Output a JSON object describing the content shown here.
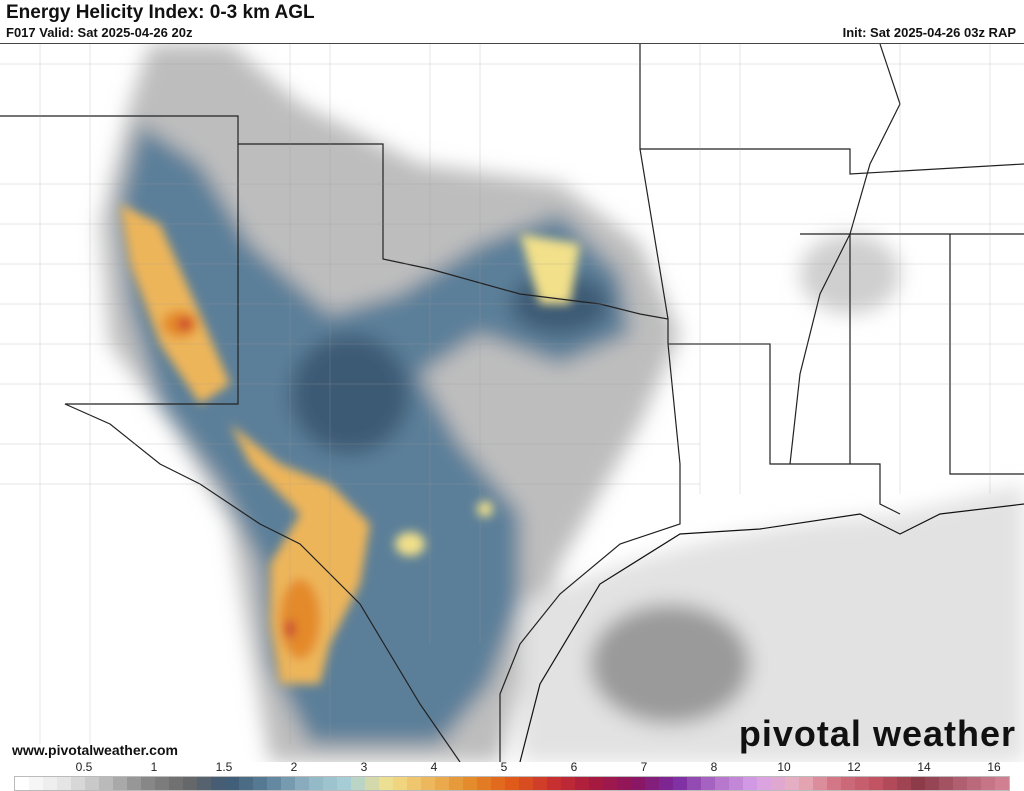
{
  "header": {
    "title": "Energy Helicity Index: 0-3 km AGL",
    "valid": "F017 Valid: Sat 2025-04-26 20z",
    "init": "Init: Sat 2025-04-26 03z RAP"
  },
  "footer": {
    "website": "www.pivotalweather.com",
    "logo": "pivotal weather"
  },
  "colorbar": {
    "labels": [
      "0.5",
      "1",
      "1.5",
      "2",
      "3",
      "4",
      "5",
      "6",
      "7",
      "8",
      "10",
      "12",
      "14",
      "16"
    ],
    "stops": [
      "#ffffff",
      "#e6e6e6",
      "#bdbdbd",
      "#8a8a8a",
      "#6a6a6a",
      "#3e5a75",
      "#5b7f99",
      "#8fb4c4",
      "#a9d0d8",
      "#f2e08a",
      "#edb55a",
      "#e48a2a",
      "#e05a1a",
      "#c83030",
      "#a81a40",
      "#8a1560",
      "#7a2aa0",
      "#b070c8",
      "#d8a0e8",
      "#e8b0bc",
      "#d0707f",
      "#c05060",
      "#8a3a48",
      "#b06070",
      "#d08090"
    ]
  },
  "map": {
    "region": "Southern Plains / Texas"
  }
}
